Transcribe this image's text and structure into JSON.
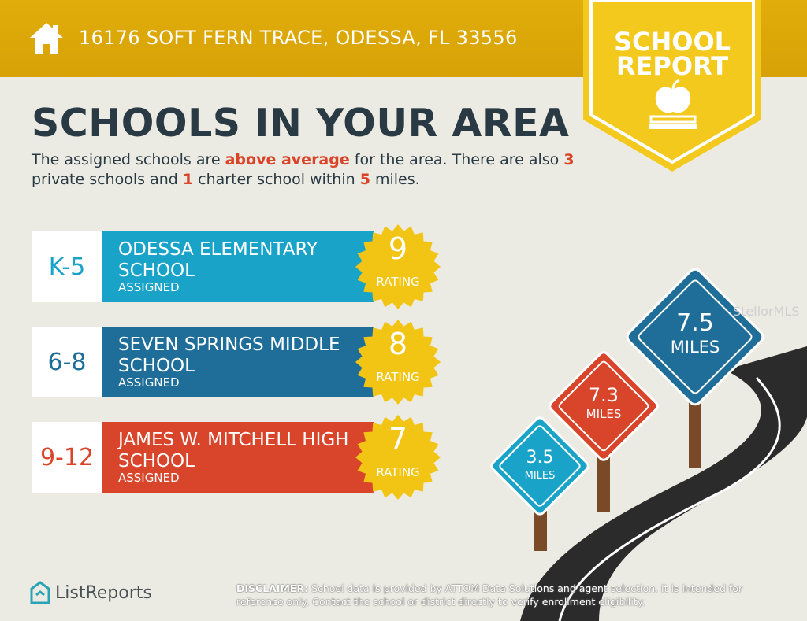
{
  "header": {
    "address": "16176 SOFT FERN TRACE, ODESSA, FL 33556"
  },
  "badge": {
    "line1": "SCHOOL",
    "line2": "REPORT"
  },
  "title": "SCHOOLS IN YOUR AREA",
  "intro": {
    "p1": "The assigned schools are ",
    "highlight1": "above average",
    "p2": " for the area. There are also ",
    "private_count": "3",
    "p3": " private schools and ",
    "charter_count": "1",
    "p4": " charter school within ",
    "miles": "5",
    "p5": " miles."
  },
  "schools": [
    {
      "grade": "K-5",
      "name": "ODESSA ELEMENTARY SCHOOL",
      "status": "ASSIGNED",
      "rating": "9",
      "rating_label": "RATING",
      "color": "#1aa3c9"
    },
    {
      "grade": "6-8",
      "name": "SEVEN SPRINGS MIDDLE SCHOOL",
      "status": "ASSIGNED",
      "rating": "8",
      "rating_label": "RATING",
      "color": "#1f6e99"
    },
    {
      "grade": "9-12",
      "name": "JAMES W. MITCHELL HIGH SCHOOL",
      "status": "ASSIGNED",
      "rating": "7",
      "rating_label": "RATING",
      "color": "#d9452a"
    }
  ],
  "signs": [
    {
      "value": "3.5",
      "unit": "MILES"
    },
    {
      "value": "7.3",
      "unit": "MILES"
    },
    {
      "value": "7.5",
      "unit": "MILES"
    }
  ],
  "watermark": "StellorMLS",
  "logo": "ListReports",
  "disclaimer": {
    "label": "DISCLAIMER:",
    "text": " School data is provided by ATTOM Data Solutions and agent selection. It is intended for reference only. Contact the school or district directly to verify enrollment eligibility."
  },
  "colors": {
    "gold": "#dba608",
    "navy": "#2a3a44",
    "accent": "#d9452a",
    "seal": "#f2c515"
  }
}
